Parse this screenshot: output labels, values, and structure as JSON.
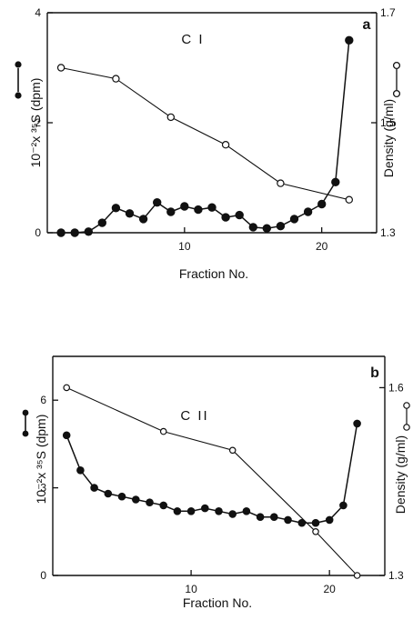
{
  "chart_data": [
    {
      "type": "line",
      "panel_letter": "a",
      "title": "C I",
      "xlabel": "Fraction No.",
      "ylabel": "10⁻²x ³⁵S (dpm)",
      "y2label": "Density (g/ml)",
      "xlim": [
        0,
        24
      ],
      "ylim": [
        0,
        4
      ],
      "y2lim": [
        1.3,
        1.7
      ],
      "x_ticks": [
        10,
        20
      ],
      "y_ticks": [
        "0",
        "2",
        "4"
      ],
      "y2_ticks": [
        "1.3",
        "1.5",
        "1.7"
      ],
      "grid": false,
      "series": [
        {
          "axis": "left",
          "marker": "filled-circle",
          "x": [
            1,
            2,
            3,
            4,
            5,
            6,
            7,
            8,
            9,
            10,
            11,
            12,
            13,
            14,
            15,
            16,
            17,
            18,
            19,
            20,
            21,
            22
          ],
          "y": [
            0.0,
            0.0,
            0.02,
            0.18,
            0.45,
            0.35,
            0.25,
            0.55,
            0.38,
            0.48,
            0.42,
            0.46,
            0.28,
            0.32,
            0.1,
            0.08,
            0.12,
            0.25,
            0.38,
            0.52,
            0.92,
            3.5
          ]
        },
        {
          "axis": "right",
          "marker": "open-circle",
          "x": [
            1,
            5,
            9,
            13,
            17,
            22
          ],
          "y": [
            1.6,
            1.58,
            1.51,
            1.46,
            1.39,
            1.36
          ]
        }
      ]
    },
    {
      "type": "line",
      "panel_letter": "b",
      "title": "C II",
      "xlabel": "Fraction   No.",
      "ylabel": "10⁻²x ³⁵S (dpm)",
      "y2label": "Density (g/ml)",
      "xlim": [
        0,
        24
      ],
      "ylim": [
        0,
        7.5
      ],
      "y2lim": [
        1.3,
        1.65
      ],
      "x_ticks": [
        10,
        20
      ],
      "y_ticks": [
        "0",
        "3",
        "6"
      ],
      "y2_ticks": [
        "1.3",
        "1.6"
      ],
      "grid": false,
      "series": [
        {
          "axis": "left",
          "marker": "filled-circle",
          "x": [
            1,
            2,
            3,
            4,
            5,
            6,
            7,
            8,
            9,
            10,
            11,
            12,
            13,
            14,
            15,
            16,
            17,
            18,
            19,
            20,
            21,
            22
          ],
          "y": [
            4.8,
            3.6,
            3.0,
            2.8,
            2.7,
            2.6,
            2.5,
            2.4,
            2.2,
            2.2,
            2.3,
            2.2,
            2.1,
            2.2,
            2.0,
            2.0,
            1.9,
            1.8,
            1.8,
            1.9,
            2.4,
            5.2
          ]
        },
        {
          "axis": "right",
          "marker": "open-circle",
          "x": [
            1,
            8,
            13,
            19,
            22
          ],
          "y": [
            1.6,
            1.53,
            1.5,
            1.37,
            1.3
          ]
        }
      ]
    }
  ]
}
